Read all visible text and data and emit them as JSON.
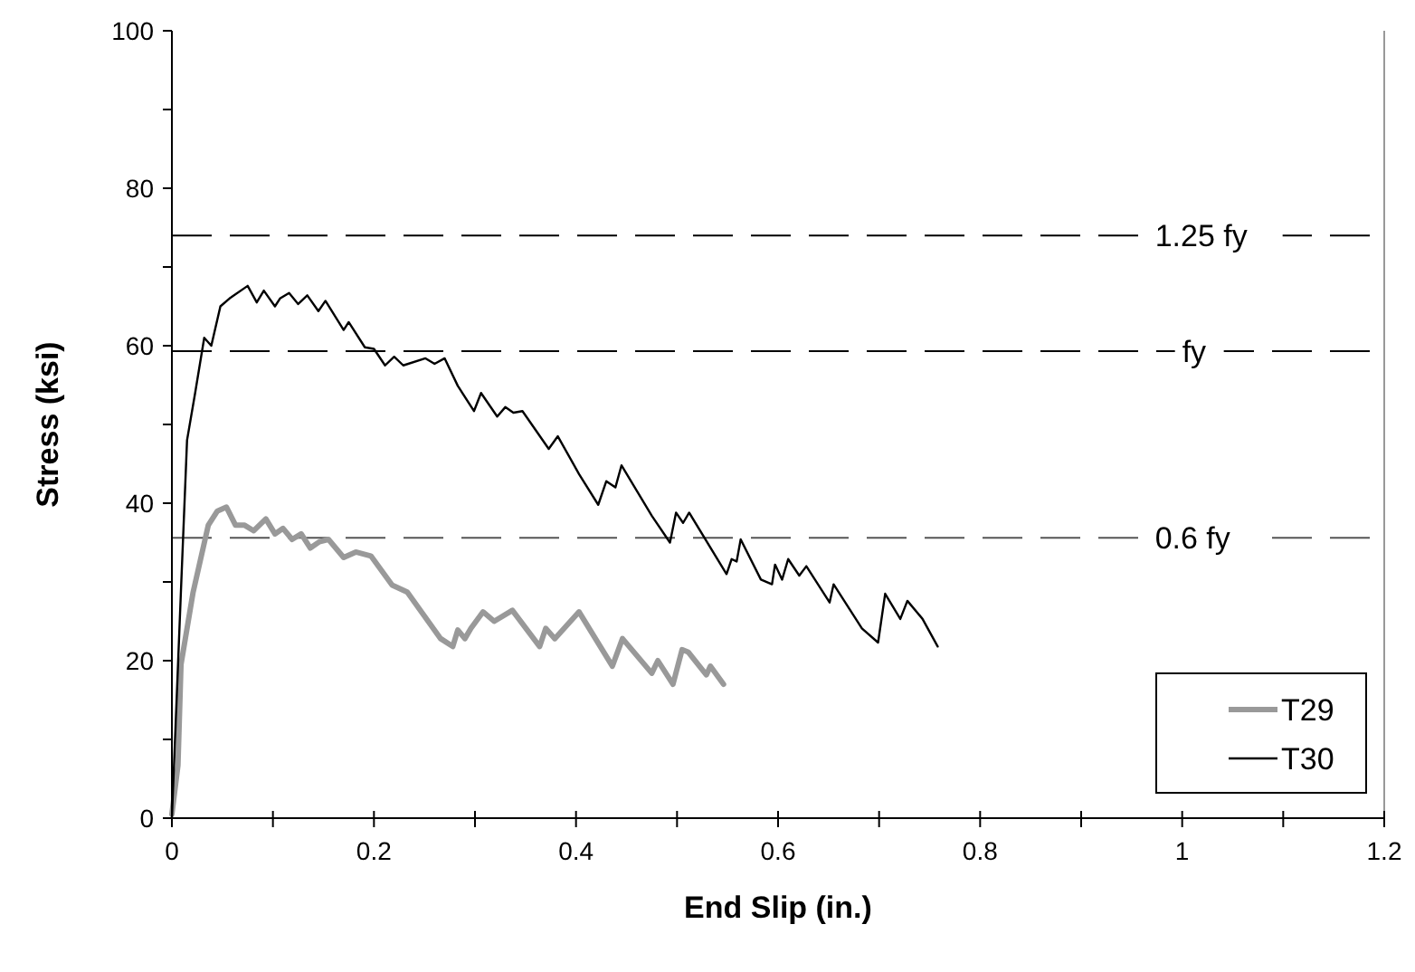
{
  "chart_data": {
    "type": "line",
    "xlabel": "End Slip (in.)",
    "ylabel": "Stress (ksi)",
    "xlim": [
      0,
      1.2
    ],
    "ylim": [
      0,
      100
    ],
    "xticks": [
      0,
      {
        "value": 0.1,
        "label": null
      },
      0.2,
      {
        "value": 0.3,
        "label": null
      },
      0.4,
      {
        "value": 0.5,
        "label": null
      },
      0.6,
      {
        "value": 0.7,
        "label": null
      },
      0.8,
      {
        "value": 0.9,
        "label": null
      },
      1,
      {
        "value": 1.1,
        "label": null
      },
      1.2
    ],
    "yticks": [
      0,
      {
        "value": 10,
        "label": null
      },
      20,
      {
        "value": 30,
        "label": null
      },
      40,
      {
        "value": 50,
        "label": null
      },
      60,
      {
        "value": 70,
        "label": null
      },
      80,
      {
        "value": 90,
        "label": null
      },
      100
    ],
    "grid": false,
    "legend": "bottom right",
    "marker": "none",
    "line_style": "solid",
    "series": [
      {
        "name": "T29",
        "color": "#999999",
        "x": [
          0,
          0.006,
          0.009,
          0.021,
          0.036,
          0.045,
          0.054,
          0.063,
          0.072,
          0.081,
          0.093,
          0.102,
          0.11,
          0.119,
          0.128,
          0.137,
          0.146,
          0.155,
          0.17,
          0.182,
          0.197,
          0.218,
          0.233,
          0.266,
          0.278,
          0.283,
          0.29,
          0.296,
          0.308,
          0.319,
          0.337,
          0.364,
          0.37,
          0.379,
          0.403,
          0.436,
          0.446,
          0.475,
          0.481,
          0.496,
          0.505,
          0.511,
          0.529,
          0.533,
          0.546
        ],
        "values": [
          0.5,
          6.7,
          19.5,
          28.7,
          37.2,
          39,
          39.5,
          37.2,
          37.2,
          36.5,
          38,
          36.1,
          36.8,
          35.4,
          36.1,
          34.3,
          35.1,
          35.4,
          33.1,
          33.8,
          33.3,
          29.6,
          28.7,
          22.8,
          21.8,
          23.9,
          22.8,
          24.1,
          26.2,
          25,
          26.4,
          21.8,
          24.1,
          22.8,
          26.2,
          19.3,
          22.8,
          18.4,
          20,
          17,
          21.4,
          21.1,
          18.2,
          19.3,
          17
        ]
      },
      {
        "name": "T30",
        "color": "#000000",
        "x": [
          0,
          0.009,
          0.015,
          0.023,
          0.032,
          0.039,
          0.048,
          0.057,
          0.075,
          0.084,
          0.091,
          0.102,
          0.107,
          0.116,
          0.125,
          0.134,
          0.145,
          0.152,
          0.17,
          0.175,
          0.191,
          0.2,
          0.211,
          0.22,
          0.229,
          0.251,
          0.26,
          0.27,
          0.283,
          0.299,
          0.306,
          0.322,
          0.33,
          0.338,
          0.347,
          0.373,
          0.382,
          0.403,
          0.422,
          0.43,
          0.439,
          0.445,
          0.475,
          0.493,
          0.499,
          0.506,
          0.512,
          0.549,
          0.554,
          0.559,
          0.563,
          0.583,
          0.594,
          0.597,
          0.604,
          0.61,
          0.621,
          0.628,
          0.651,
          0.655,
          0.683,
          0.699,
          0.706,
          0.721,
          0.728,
          0.743,
          0.758
        ],
        "values": [
          0,
          29,
          48,
          54,
          61,
          60,
          65,
          66,
          67.6,
          65.5,
          67,
          65,
          66,
          66.7,
          65.3,
          66.4,
          64.4,
          65.7,
          62,
          63,
          59.8,
          59.6,
          57.5,
          58.6,
          57.5,
          58.4,
          57.7,
          58.4,
          54.9,
          51.7,
          54,
          51,
          52.2,
          51.5,
          51.7,
          46.9,
          48.5,
          43.7,
          39.8,
          42.8,
          42,
          44.8,
          38.4,
          35,
          38.8,
          37.5,
          38.8,
          31,
          32.9,
          32.6,
          35.4,
          30.3,
          29.7,
          32.2,
          30.3,
          32.9,
          30.8,
          32,
          27.4,
          29.7,
          24.1,
          22.3,
          28.5,
          25.3,
          27.6,
          25.3,
          21.8
        ]
      }
    ],
    "ref_lines": [
      {
        "axis": "y",
        "value": 74,
        "label": "1.25 fy",
        "color": "#000000",
        "line_style": "dashed"
      },
      {
        "axis": "y",
        "value": 59.3,
        "label": "fy",
        "color": "#000000",
        "line_style": "dashed"
      },
      {
        "axis": "y",
        "value": 35.6,
        "label": "0.6 fy",
        "color": "#555555",
        "line_style": "dashed"
      }
    ]
  }
}
